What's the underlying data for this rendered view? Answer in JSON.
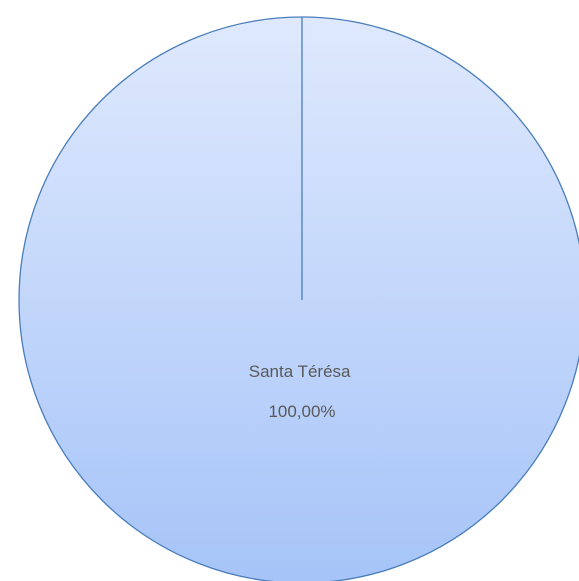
{
  "chart_data": {
    "type": "pie",
    "categories": [
      "Santa Térésa"
    ],
    "values": [
      100
    ],
    "data_labels": [
      {
        "category": "Santa Térésa",
        "percent": "100,00%"
      }
    ],
    "legend": "none",
    "colors": {
      "fill_top": "#dfe9fd",
      "fill_bottom": "#a6c4f8",
      "stroke": "#4a7ebb"
    }
  }
}
